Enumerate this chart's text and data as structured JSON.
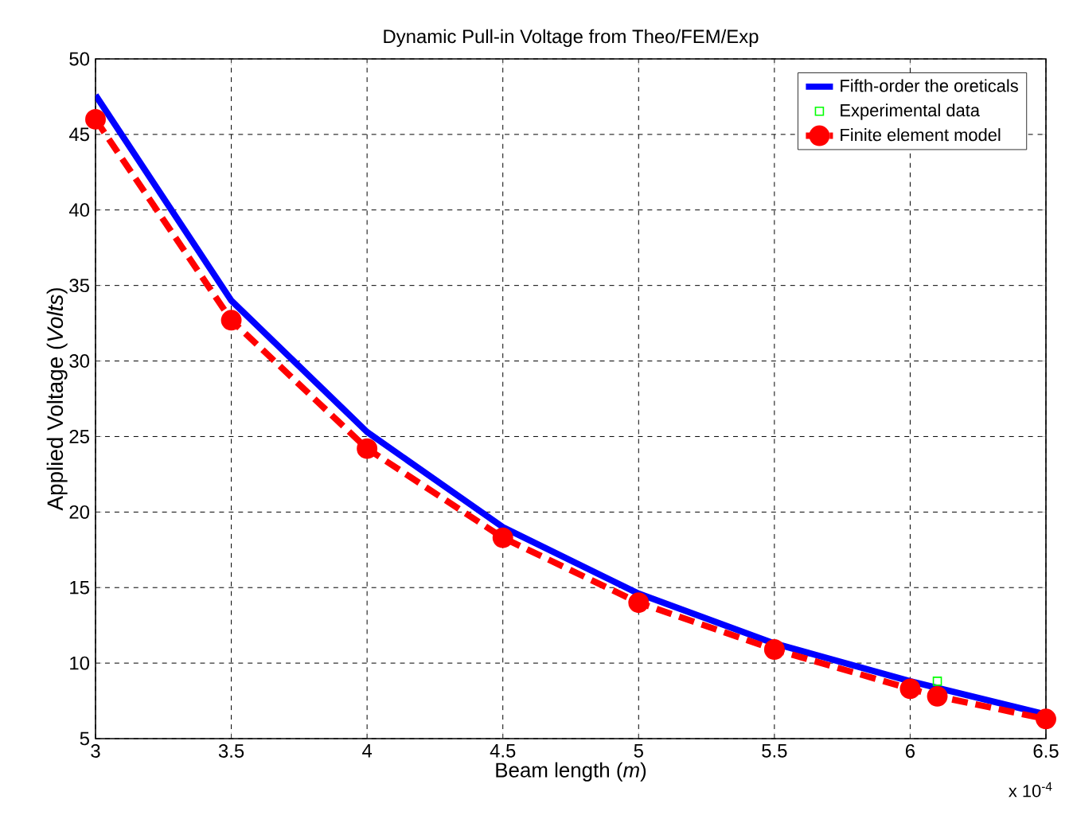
{
  "chart_data": {
    "type": "line",
    "title": "Dynamic Pull-in Voltage from Theo/FEM/Exp",
    "xlabel": "Beam length (*m*)",
    "ylabel": "Applied  Voltage (*Volts*)",
    "xlim": [
      3,
      6.5
    ],
    "xticks": [
      3,
      3.5,
      4,
      4.5,
      5,
      5.5,
      6,
      6.5
    ],
    "ylim": [
      5,
      50
    ],
    "yticks": [
      5,
      10,
      15,
      20,
      25,
      30,
      35,
      40,
      45,
      50
    ],
    "grid": true,
    "legend": "top right",
    "annotations": [
      "x 10$^{-4}$"
    ],
    "series": [
      {
        "name": "Fifth-order the oreticals",
        "color": "#0000ff",
        "marker": "none",
        "line_style": "solid",
        "x": [
          3,
          3.5,
          4,
          4.5,
          5,
          5.5,
          6,
          6.5
        ],
        "values": [
          47.6,
          34,
          25.3,
          19,
          14.6,
          11.3,
          8.8,
          6.6
        ]
      },
      {
        "name": "Experimental data",
        "color": "#00ff00",
        "type": "scatter",
        "marker": "square",
        "x": [
          6.1
        ],
        "values": [
          8.8
        ]
      },
      {
        "name": "Finite element model",
        "color": "#ff0000",
        "marker": "circle",
        "line_style": "dashed",
        "x": [
          3,
          3.5,
          4,
          4.5,
          5,
          5.5,
          6,
          6.1,
          6.5
        ],
        "values": [
          46,
          32.7,
          24.2,
          18.3,
          14,
          10.9,
          8.3,
          7.8,
          6.3
        ]
      }
    ]
  }
}
